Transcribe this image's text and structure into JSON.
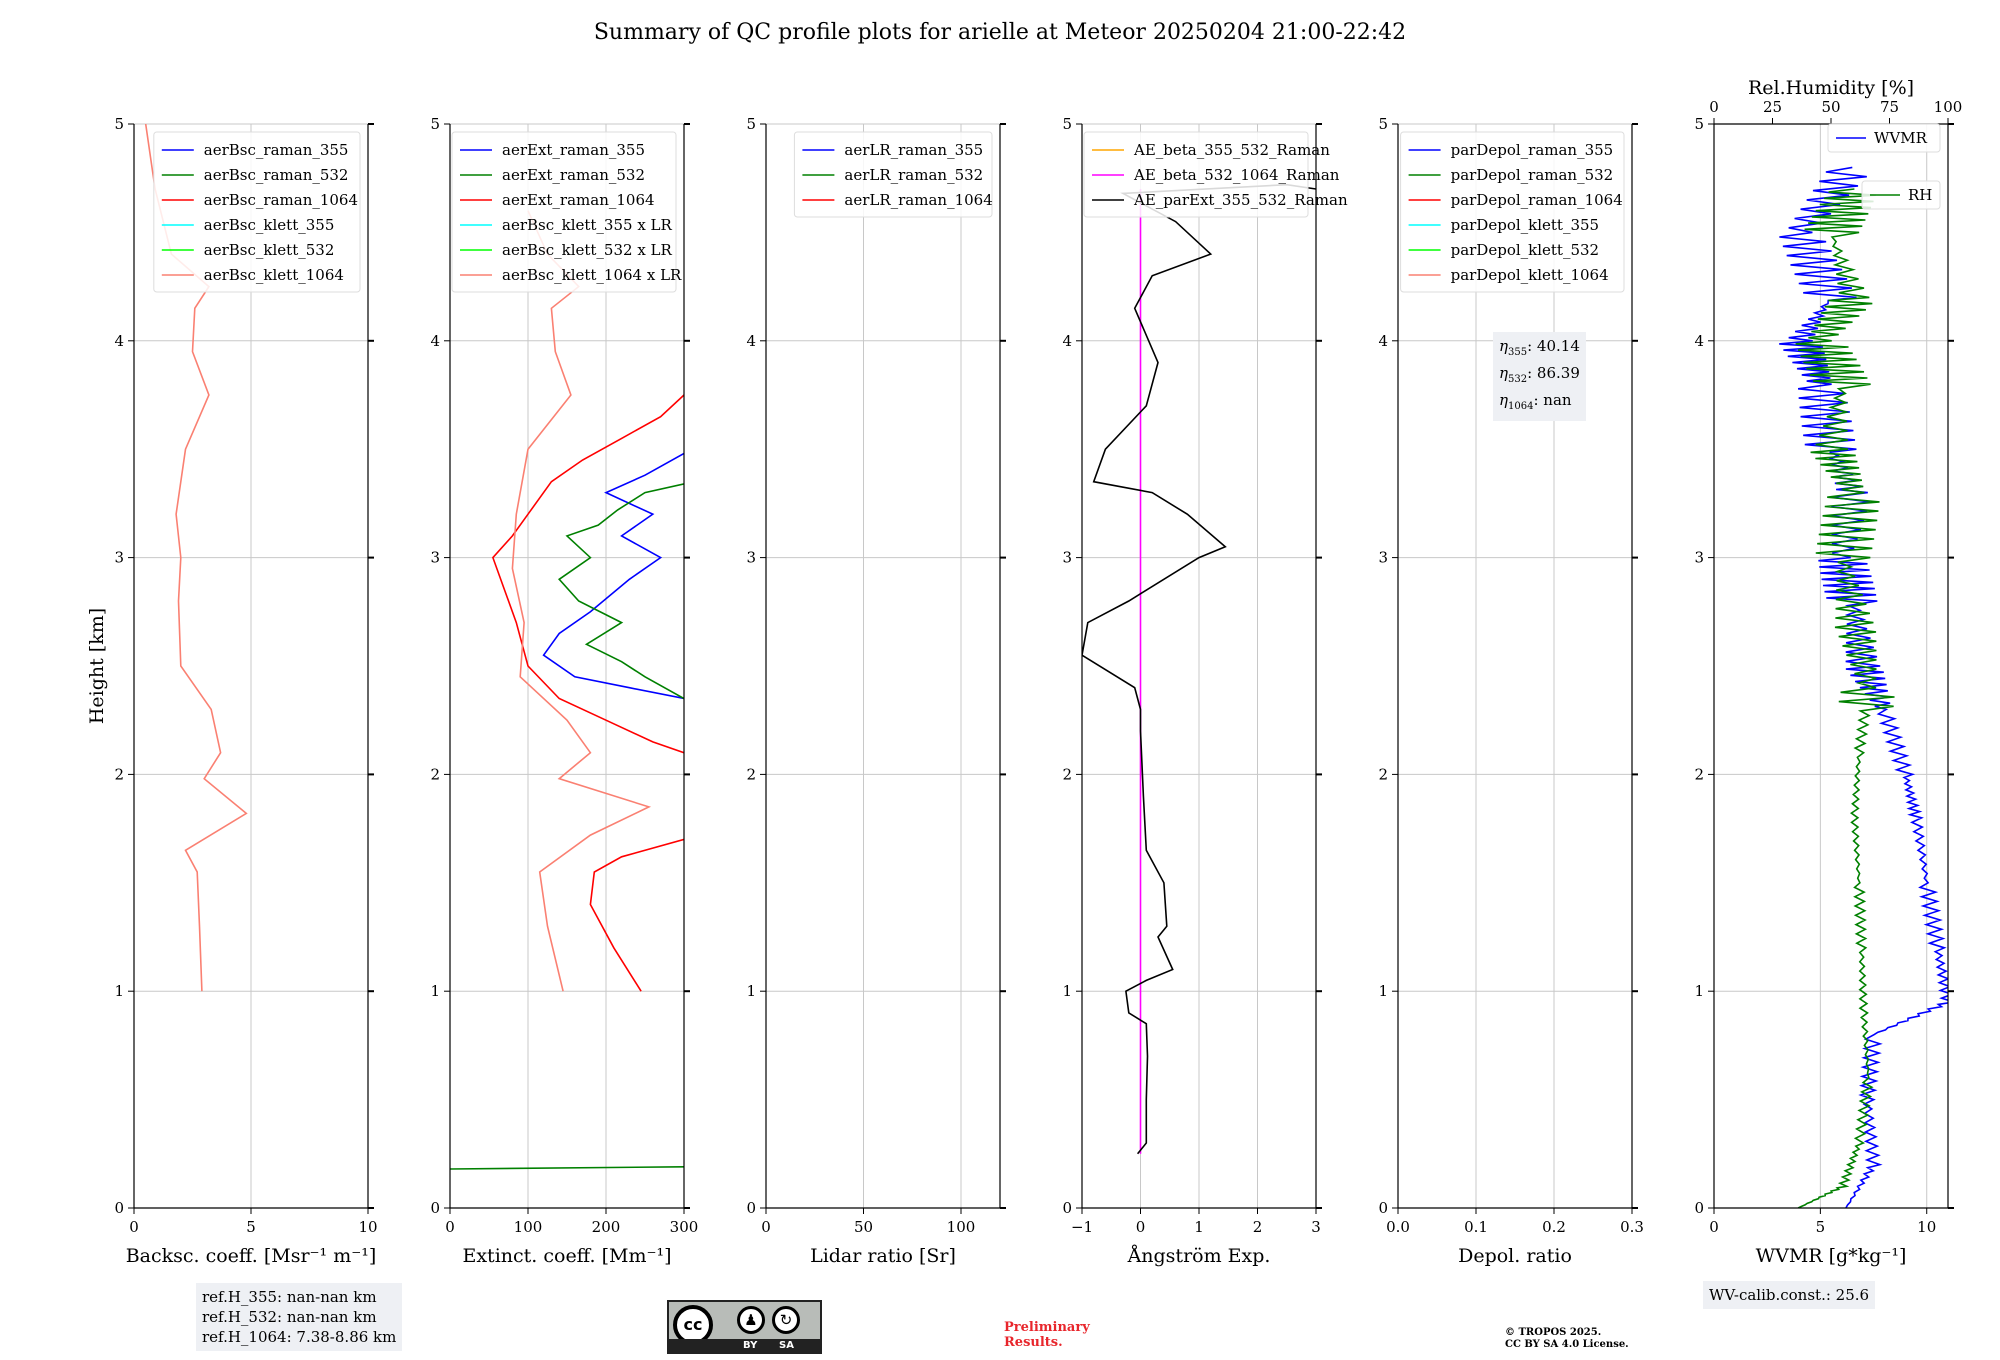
{
  "title": "Summary of QC profile plots for arielle at Meteor 20250204 21:00-22:42",
  "ylabel": "Height [km]",
  "colors": {
    "blue": "#0000ff",
    "green": "#008000",
    "red": "#ff0000",
    "cyan": "#00ffff",
    "lime": "#00ff00",
    "salmon": "#fa8072",
    "orange": "#ffa500",
    "magenta": "#ff00ff",
    "black": "#000000"
  },
  "chart_data": [
    {
      "type": "line",
      "xlabel": "Backsc. coeff. [Msr⁻¹ m⁻¹]",
      "xlim": [
        0,
        10
      ],
      "xticks": [
        "0",
        "5",
        "10"
      ],
      "ylim": [
        0,
        5
      ],
      "yticks": [
        "0",
        "1",
        "2",
        "3",
        "4",
        "5"
      ],
      "grid": true,
      "legend_position": "top-right",
      "series": [
        {
          "name": "aerBsc_raman_355",
          "color": "blue",
          "points": []
        },
        {
          "name": "aerBsc_raman_532",
          "color": "green",
          "points": []
        },
        {
          "name": "aerBsc_raman_1064",
          "color": "red",
          "points": []
        },
        {
          "name": "aerBsc_klett_355",
          "color": "cyan",
          "points": []
        },
        {
          "name": "aerBsc_klett_532",
          "color": "lime",
          "points": []
        },
        {
          "name": "aerBsc_klett_1064",
          "color": "salmon",
          "points": [
            [
              2.9,
              1.0
            ],
            [
              2.8,
              1.3
            ],
            [
              2.7,
              1.55
            ],
            [
              2.2,
              1.65
            ],
            [
              4.8,
              1.82
            ],
            [
              3.0,
              1.98
            ],
            [
              3.7,
              2.1
            ],
            [
              3.3,
              2.3
            ],
            [
              2.0,
              2.5
            ],
            [
              1.9,
              2.8
            ],
            [
              2.0,
              3.0
            ],
            [
              1.8,
              3.2
            ],
            [
              2.2,
              3.5
            ],
            [
              3.2,
              3.75
            ],
            [
              2.5,
              3.95
            ],
            [
              2.6,
              4.15
            ],
            [
              3.2,
              4.25
            ],
            [
              1.6,
              4.4
            ],
            [
              0.9,
              4.7
            ],
            [
              0.5,
              5.0
            ]
          ]
        }
      ]
    },
    {
      "type": "line",
      "xlabel": "Extinct. coeff. [Mm⁻¹]",
      "xlim": [
        0,
        300
      ],
      "xticks": [
        "0",
        "100",
        "200",
        "300"
      ],
      "ylim": [
        0,
        5
      ],
      "yticks": [
        "0",
        "1",
        "2",
        "3",
        "4",
        "5"
      ],
      "grid": true,
      "legend_position": "top-right",
      "series": [
        {
          "name": "aerExt_raman_355",
          "color": "blue",
          "points": [
            [
              300,
              2.35
            ],
            [
              230,
              2.4
            ],
            [
              160,
              2.45
            ],
            [
              120,
              2.55
            ],
            [
              140,
              2.65
            ],
            [
              180,
              2.75
            ],
            [
              230,
              2.9
            ],
            [
              270,
              3.0
            ],
            [
              220,
              3.1
            ],
            [
              260,
              3.2
            ],
            [
              200,
              3.3
            ],
            [
              250,
              3.38
            ],
            [
              300,
              3.48
            ]
          ]
        },
        {
          "name": "aerExt_raman_532",
          "color": "green",
          "points": [
            [
              0,
              0.18
            ],
            [
              300,
              0.19
            ],
            [
              null,
              null
            ],
            [
              300,
              2.35
            ],
            [
              250,
              2.45
            ],
            [
              220,
              2.52
            ],
            [
              175,
              2.6
            ],
            [
              220,
              2.7
            ],
            [
              165,
              2.8
            ],
            [
              140,
              2.9
            ],
            [
              180,
              3.0
            ],
            [
              150,
              3.1
            ],
            [
              190,
              3.15
            ],
            [
              215,
              3.22
            ],
            [
              250,
              3.3
            ],
            [
              300,
              3.34
            ]
          ]
        },
        {
          "name": "aerExt_raman_1064",
          "color": "red",
          "points": [
            [
              245,
              1.0
            ],
            [
              210,
              1.2
            ],
            [
              180,
              1.4
            ],
            [
              185,
              1.55
            ],
            [
              220,
              1.62
            ],
            [
              300,
              1.7
            ],
            [
              null,
              null
            ],
            [
              300,
              2.1
            ],
            [
              260,
              2.15
            ],
            [
              200,
              2.25
            ],
            [
              140,
              2.35
            ],
            [
              100,
              2.5
            ],
            [
              85,
              2.7
            ],
            [
              70,
              2.85
            ],
            [
              55,
              3.0
            ],
            [
              80,
              3.1
            ],
            [
              100,
              3.2
            ],
            [
              130,
              3.35
            ],
            [
              170,
              3.45
            ],
            [
              220,
              3.55
            ],
            [
              270,
              3.65
            ],
            [
              300,
              3.75
            ]
          ]
        },
        {
          "name": "aerBsc_klett_355 x LR",
          "color": "cyan",
          "points": []
        },
        {
          "name": "aerBsc_klett_532 x LR",
          "color": "lime",
          "points": []
        },
        {
          "name": "aerBsc_klett_1064 x LR",
          "color": "salmon",
          "points": [
            [
              145,
              1.0
            ],
            [
              125,
              1.3
            ],
            [
              115,
              1.55
            ],
            [
              180,
              1.72
            ],
            [
              255,
              1.85
            ],
            [
              140,
              1.98
            ],
            [
              180,
              2.1
            ],
            [
              150,
              2.25
            ],
            [
              90,
              2.45
            ],
            [
              95,
              2.7
            ],
            [
              80,
              2.95
            ],
            [
              85,
              3.2
            ],
            [
              100,
              3.5
            ],
            [
              155,
              3.75
            ],
            [
              135,
              3.95
            ],
            [
              130,
              4.15
            ],
            [
              165,
              4.25
            ],
            [
              125,
              4.4
            ],
            [
              100,
              4.6
            ]
          ]
        }
      ]
    },
    {
      "type": "line",
      "xlabel": "Lidar ratio [Sr]",
      "xlim": [
        0,
        120
      ],
      "xticks": [
        "0",
        "50",
        "100"
      ],
      "ylim": [
        0,
        5
      ],
      "yticks": [
        "0",
        "1",
        "2",
        "3",
        "4",
        "5"
      ],
      "grid": true,
      "legend_position": "top-right",
      "series": [
        {
          "name": "aerLR_raman_355",
          "color": "blue",
          "points": []
        },
        {
          "name": "aerLR_raman_532",
          "color": "green",
          "points": []
        },
        {
          "name": "aerLR_raman_1064",
          "color": "red",
          "points": []
        }
      ]
    },
    {
      "type": "line",
      "xlabel": "Ångström Exp.",
      "xlim": [
        -1,
        3
      ],
      "xticks": [
        "−1",
        "0",
        "1",
        "2",
        "3"
      ],
      "ylim": [
        0,
        5
      ],
      "yticks": [
        "0",
        "1",
        "2",
        "3",
        "4",
        "5"
      ],
      "grid": true,
      "legend_position": "top-right",
      "series": [
        {
          "name": "AE_beta_355_532_Raman",
          "color": "orange",
          "points": []
        },
        {
          "name": "AE_beta_532_1064_Raman",
          "color": "magenta",
          "points": [
            [
              0,
              0.25
            ],
            [
              0,
              4.7
            ]
          ]
        },
        {
          "name": "AE_parExt_355_532_Raman",
          "color": "black",
          "points": [
            [
              -0.05,
              0.25
            ],
            [
              0.1,
              0.3
            ],
            [
              0.1,
              0.5
            ],
            [
              0.12,
              0.7
            ],
            [
              0.1,
              0.85
            ],
            [
              -0.2,
              0.9
            ],
            [
              -0.25,
              1.0
            ],
            [
              0.1,
              1.05
            ],
            [
              0.55,
              1.1
            ],
            [
              0.3,
              1.25
            ],
            [
              0.45,
              1.3
            ],
            [
              0.4,
              1.5
            ],
            [
              0.1,
              1.65
            ],
            [
              0.05,
              1.9
            ],
            [
              0,
              2.2
            ],
            [
              0,
              2.3
            ],
            [
              -0.1,
              2.4
            ],
            [
              -1.0,
              2.55
            ],
            [
              -0.9,
              2.7
            ],
            [
              -0.2,
              2.8
            ],
            [
              1.0,
              3.0
            ],
            [
              1.45,
              3.05
            ],
            [
              0.8,
              3.2
            ],
            [
              0.2,
              3.3
            ],
            [
              -0.8,
              3.35
            ],
            [
              -0.6,
              3.5
            ],
            [
              0.1,
              3.7
            ],
            [
              0.3,
              3.9
            ],
            [
              -0.1,
              4.15
            ],
            [
              0.2,
              4.3
            ],
            [
              1.2,
              4.4
            ],
            [
              0.6,
              4.55
            ],
            [
              -0.3,
              4.68
            ],
            [
              2.5,
              4.72
            ],
            [
              3.0,
              4.7
            ]
          ]
        }
      ]
    },
    {
      "type": "line",
      "xlabel": "Depol. ratio",
      "xlim": [
        0,
        0.3
      ],
      "xticks": [
        "0.0",
        "0.1",
        "0.2",
        "0.3"
      ],
      "ylim": [
        0,
        5
      ],
      "yticks": [
        "0",
        "1",
        "2",
        "3",
        "4",
        "5"
      ],
      "grid": true,
      "legend_position": "top-right",
      "series": [
        {
          "name": "parDepol_raman_355",
          "color": "blue",
          "points": []
        },
        {
          "name": "parDepol_raman_532",
          "color": "green",
          "points": []
        },
        {
          "name": "parDepol_raman_1064",
          "color": "red",
          "points": []
        },
        {
          "name": "parDepol_klett_355",
          "color": "cyan",
          "points": []
        },
        {
          "name": "parDepol_klett_532",
          "color": "lime",
          "points": []
        },
        {
          "name": "parDepol_klett_1064",
          "color": "salmon",
          "points": []
        }
      ],
      "annotations": [
        {
          "label": "η355:",
          "sub_prefix": "η",
          "sub": "355",
          "value": "40.14"
        },
        {
          "label": "η532:",
          "sub_prefix": "η",
          "sub": "532",
          "value": "86.39"
        },
        {
          "label": "η1064:",
          "sub_prefix": "η",
          "sub": "1064",
          "value": "nan"
        }
      ]
    },
    {
      "type": "line",
      "xlabel": "WVMR [g*kg⁻¹]",
      "xlim": [
        0,
        11
      ],
      "xticks": [
        "0",
        "5",
        "10"
      ],
      "top_xlabel": "Rel.Humidity [%]",
      "top_xlim": [
        0,
        100
      ],
      "top_xticks": [
        "0",
        "25",
        "50",
        "75",
        "100"
      ],
      "ylim": [
        0,
        5
      ],
      "yticks": [
        "0",
        "1",
        "2",
        "3",
        "4",
        "5"
      ],
      "grid": true,
      "legend_position": "top-right",
      "series": [
        {
          "name": "WVMR",
          "color": "blue",
          "points": [
            [
              6.2,
              0.0
            ],
            [
              7.5,
              0.2
            ],
            [
              7.2,
              0.5
            ],
            [
              7.5,
              0.8
            ],
            [
              11,
              0.95
            ],
            [
              10.5,
              1.2
            ],
            [
              10,
              1.5
            ],
            [
              9.5,
              1.8
            ],
            [
              9.0,
              2.0
            ],
            [
              8.0,
              2.3
            ],
            [
              7.0,
              2.5
            ],
            [
              6.5,
              2.8
            ],
            [
              6.0,
              3.0
            ],
            [
              6.5,
              3.3
            ],
            [
              5.5,
              3.5
            ],
            [
              5.0,
              3.8
            ],
            [
              4.0,
              4.0
            ],
            [
              5.5,
              4.2
            ],
            [
              4.0,
              4.5
            ],
            [
              6.5,
              4.8
            ]
          ]
        },
        {
          "name": "RH",
          "color": "green",
          "points": [
            [
              36,
              0.0
            ],
            [
              55,
              0.1
            ],
            [
              62,
              0.3
            ],
            [
              66,
              0.6
            ],
            [
              64,
              0.9
            ],
            [
              63,
              1.2
            ],
            [
              62,
              1.5
            ],
            [
              60,
              1.8
            ],
            [
              62,
              2.1
            ],
            [
              66,
              2.4
            ],
            [
              60,
              2.7
            ],
            [
              55,
              3.0
            ],
            [
              60,
              3.3
            ],
            [
              50,
              3.5
            ],
            [
              55,
              3.8
            ],
            [
              45,
              4.0
            ],
            [
              60,
              4.2
            ],
            [
              50,
              4.5
            ],
            [
              60,
              4.7
            ]
          ]
        }
      ],
      "wvmr_noise": true
    }
  ],
  "info_boxes": {
    "ref_heights": [
      "ref.H_355: nan-nan km",
      "ref.H_532: nan-nan km",
      "ref.H_1064: 7.38-8.86 km"
    ],
    "wv_calib": "WV-calib.const.: 25.6"
  },
  "footer": {
    "cc_text": "cc",
    "cc_by": "BY",
    "cc_sa": "SA",
    "preliminary": "Preliminary\nResults.",
    "copyright_line1": "© TROPOS 2025.",
    "copyright_line2": "CC BY SA 4.0 License."
  }
}
